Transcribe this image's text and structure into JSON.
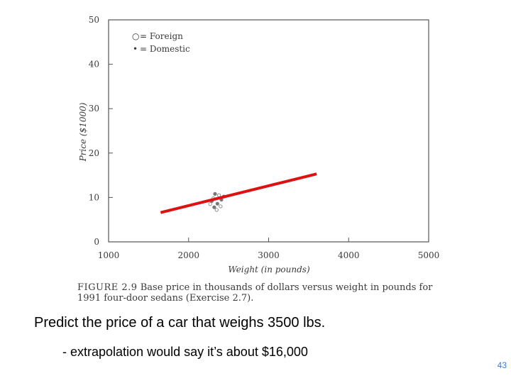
{
  "chart_data": {
    "type": "scatter",
    "title": "",
    "xlabel": "Weight (in pounds)",
    "ylabel": "Price ($1000)",
    "xlim": [
      1000,
      5000
    ],
    "ylim": [
      0,
      50
    ],
    "x_ticks": [
      "1000",
      "2000",
      "3000",
      "4000",
      "5000"
    ],
    "y_ticks": [
      "0",
      "10",
      "20",
      "30",
      "40",
      "50"
    ],
    "legend": [
      {
        "symbol": "○",
        "label": "= Foreign"
      },
      {
        "symbol": "•",
        "label": "= Domestic"
      }
    ],
    "legend_position": "top-left",
    "series": [
      {
        "name": "Foreign",
        "marker": "open-circle",
        "color": "#777777",
        "points": [
          [
            2270,
            8.5
          ],
          [
            2310,
            9.8
          ],
          [
            2350,
            7.2
          ],
          [
            2380,
            10.5
          ],
          [
            2400,
            8.0
          ]
        ]
      },
      {
        "name": "Domestic",
        "marker": "filled-circle",
        "color": "#777777",
        "points": [
          [
            2290,
            9.2
          ],
          [
            2330,
            10.8
          ],
          [
            2360,
            8.6
          ],
          [
            2410,
            9.5
          ],
          [
            2440,
            10.2
          ],
          [
            2320,
            7.8
          ]
        ]
      }
    ],
    "trend_line": {
      "color": "#dd1111",
      "from": [
        1650,
        6.6
      ],
      "to": [
        3600,
        15.3
      ]
    }
  },
  "caption": {
    "figure_number": "FIGURE 2.9",
    "text": "Base price in thousands of dollars versus weight in pounds for 1991 four-door sedans (Exercise 2.7)."
  },
  "question": "Predict the price of a car that weighs 3500 lbs.",
  "answer": "- extrapolation would say it’s about $16,000",
  "slide_number": "43"
}
